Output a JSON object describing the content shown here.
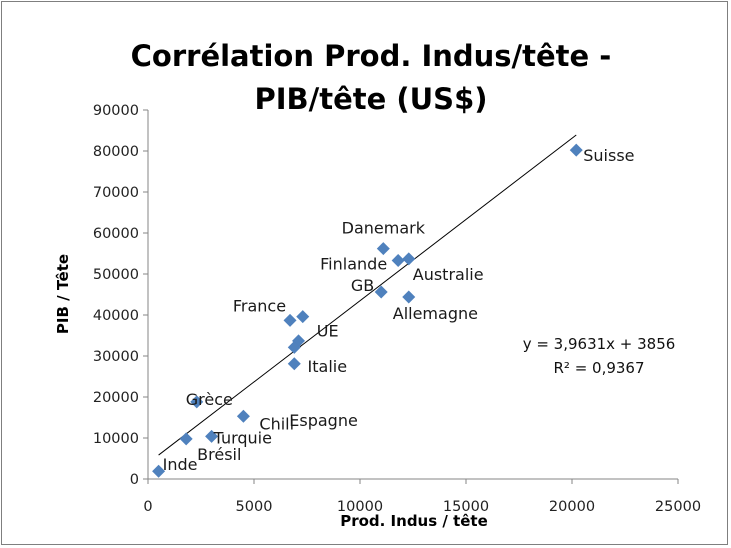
{
  "chart_data": {
    "type": "scatter",
    "title_lines": [
      "Corrélation Prod. Indus/tête -",
      "PIB/tête (US$)"
    ],
    "xlabel": "Prod. Indus / tête",
    "ylabel": "PIB / Tête",
    "xlim": [
      0,
      25000
    ],
    "ylim": [
      0,
      90000
    ],
    "x_ticks": [
      0,
      5000,
      10000,
      15000,
      20000,
      25000
    ],
    "y_ticks": [
      0,
      10000,
      20000,
      30000,
      40000,
      50000,
      60000,
      70000,
      80000,
      90000
    ],
    "grid": false,
    "marker_color": "#4f81bd",
    "trendline_color": "#000000",
    "points": [
      {
        "label": "Suisse",
        "x": 20200,
        "y": 80200
      },
      {
        "label": "Danemark",
        "x": 11100,
        "y": 56200
      },
      {
        "label": "Finlande",
        "x": 11800,
        "y": 53300
      },
      {
        "label": "Australie",
        "x": 12300,
        "y": 53700
      },
      {
        "label": "GB",
        "x": 11000,
        "y": 45600
      },
      {
        "label": "Allemagne",
        "x": 12300,
        "y": 44400
      },
      {
        "label": "France",
        "x": 6700,
        "y": 38700
      },
      {
        "label": "UE",
        "x": 7300,
        "y": 39600
      },
      {
        "label": "Italie",
        "x": 7100,
        "y": 33700
      },
      {
        "label": "",
        "x": 6900,
        "y": 32100
      },
      {
        "label": "Espagne",
        "x": 6900,
        "y": 28100
      },
      {
        "label": "Grèce",
        "x": 2300,
        "y": 18800
      },
      {
        "label": "Chili",
        "x": 4500,
        "y": 15300
      },
      {
        "label": "Turquie",
        "x": 3000,
        "y": 10400
      },
      {
        "label": "Brésil",
        "x": 1800,
        "y": 9800
      },
      {
        "label": "Inde",
        "x": 500,
        "y": 1900
      }
    ],
    "trendline": {
      "slope": 3.9631,
      "intercept": 3856,
      "x_range": [
        500,
        20200
      ]
    },
    "equation_text": "y = 3,9631x + 3856",
    "r2_text": "R² = 0,9367"
  }
}
